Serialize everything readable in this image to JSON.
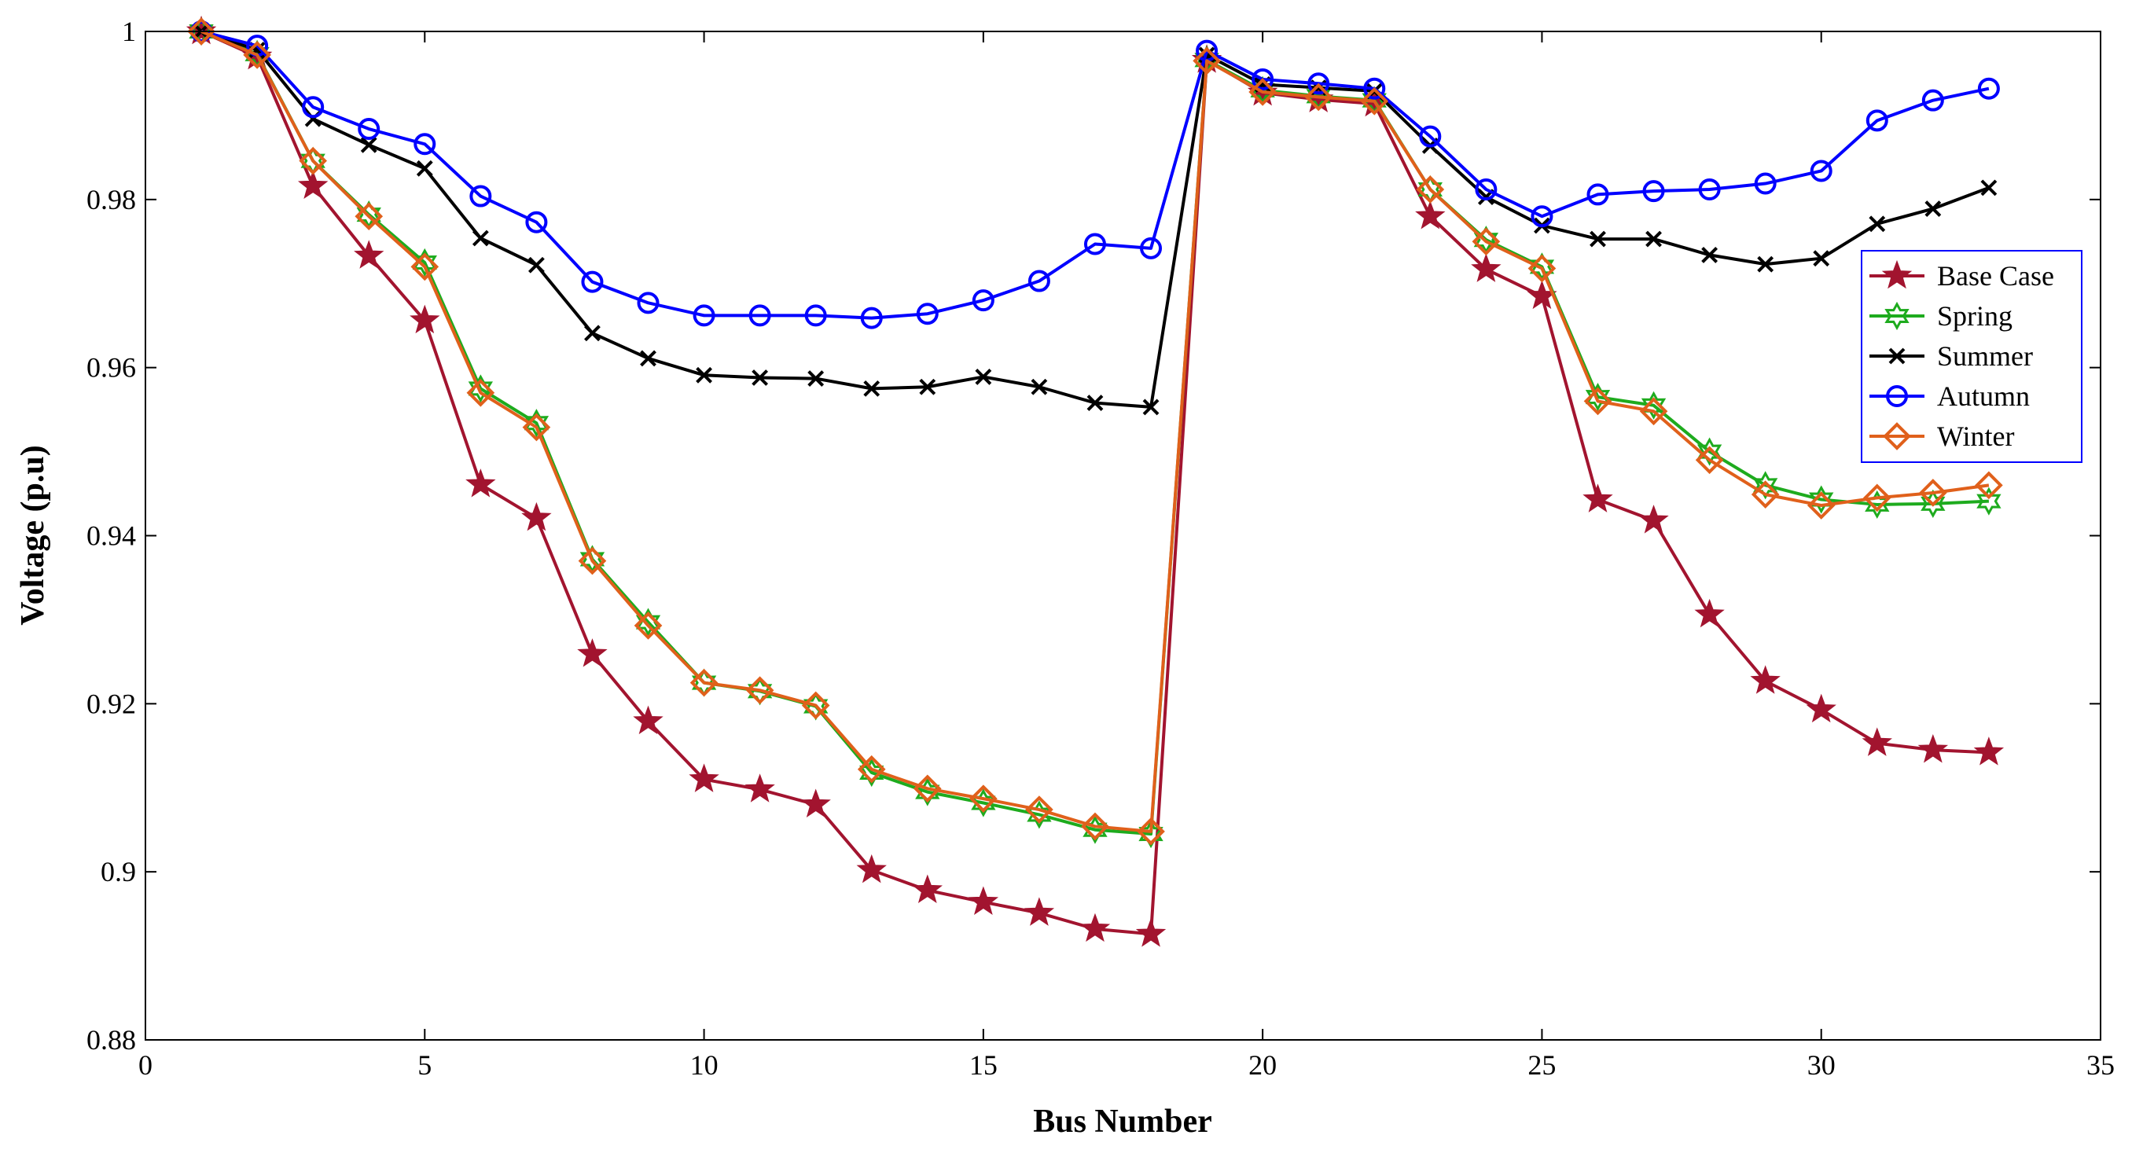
{
  "chart_data": {
    "type": "line",
    "title": "",
    "xlabel": "Bus Number",
    "ylabel": "Voltage (p.u)",
    "xlim": [
      0,
      35
    ],
    "ylim": [
      0.88,
      1.0
    ],
    "xticks": [
      0,
      5,
      10,
      15,
      20,
      25,
      30,
      35
    ],
    "yticks": [
      0.88,
      0.9,
      0.92,
      0.94,
      0.96,
      0.98,
      1.0
    ],
    "xtick_labels": [
      "0",
      "5",
      "10",
      "15",
      "20",
      "25",
      "30",
      "35"
    ],
    "ytick_labels": [
      "0.88",
      "0.9",
      "0.92",
      "0.94",
      "0.96",
      "0.98",
      "1"
    ],
    "grid": false,
    "legend_position": "right, upper-middle",
    "x": [
      1,
      2,
      3,
      4,
      5,
      6,
      7,
      8,
      9,
      10,
      11,
      12,
      13,
      14,
      15,
      16,
      17,
      18,
      19,
      20,
      21,
      22,
      23,
      24,
      25,
      26,
      27,
      28,
      29,
      30,
      31,
      32,
      33
    ],
    "series": [
      {
        "name": "Base Case",
        "color": "#A2142F",
        "marker": "star",
        "values": [
          1.0,
          0.997,
          0.9816,
          0.9733,
          0.9656,
          0.9461,
          0.9421,
          0.9259,
          0.9179,
          0.911,
          0.9098,
          0.908,
          0.9002,
          0.8978,
          0.8964,
          0.8951,
          0.8932,
          0.8926,
          0.9966,
          0.9927,
          0.9919,
          0.9914,
          0.978,
          0.9717,
          0.9685,
          0.9443,
          0.9418,
          0.9306,
          0.9227,
          0.9193,
          0.9153,
          0.9145,
          0.9142
        ]
      },
      {
        "name": "Spring",
        "color": "#1EAB1E",
        "marker": "hexagram",
        "values": [
          1.0,
          0.9973,
          0.9846,
          0.9782,
          0.9725,
          0.9575,
          0.9534,
          0.9372,
          0.9297,
          0.9225,
          0.9215,
          0.9197,
          0.9118,
          0.9095,
          0.9082,
          0.9068,
          0.905,
          0.9045,
          0.9966,
          0.993,
          0.9923,
          0.9918,
          0.9812,
          0.9752,
          0.972,
          0.9565,
          0.9555,
          0.95,
          0.946,
          0.9443,
          0.9437,
          0.9438,
          0.9441
        ]
      },
      {
        "name": "Summer",
        "color": "#000000",
        "marker": "x",
        "values": [
          1.0,
          0.9978,
          0.9896,
          0.9865,
          0.9837,
          0.9754,
          0.9722,
          0.9641,
          0.9611,
          0.9591,
          0.9588,
          0.9587,
          0.9575,
          0.9577,
          0.9589,
          0.9577,
          0.9558,
          0.9553,
          0.9972,
          0.9937,
          0.9933,
          0.9929,
          0.9864,
          0.9803,
          0.9769,
          0.9753,
          0.9753,
          0.9734,
          0.9723,
          0.973,
          0.9771,
          0.9789,
          0.9814
        ]
      },
      {
        "name": "Autumn",
        "color": "#0000FF",
        "marker": "circle",
        "values": [
          1.0,
          0.9983,
          0.991,
          0.9884,
          0.9866,
          0.9804,
          0.9773,
          0.9702,
          0.9677,
          0.9662,
          0.9662,
          0.9662,
          0.9659,
          0.9664,
          0.968,
          0.9703,
          0.9747,
          0.9742,
          0.9977,
          0.9943,
          0.9938,
          0.9932,
          0.9875,
          0.9812,
          0.978,
          0.9806,
          0.981,
          0.9812,
          0.9819,
          0.9834,
          0.9894,
          0.9918,
          0.9932
        ]
      },
      {
        "name": "Winter",
        "color": "#E0601B",
        "marker": "diamond",
        "values": [
          1.0,
          0.9972,
          0.9846,
          0.978,
          0.972,
          0.957,
          0.9529,
          0.937,
          0.9293,
          0.9225,
          0.9216,
          0.9198,
          0.9122,
          0.9099,
          0.9087,
          0.9074,
          0.9054,
          0.9048,
          0.9965,
          0.9928,
          0.9922,
          0.9917,
          0.9812,
          0.975,
          0.9718,
          0.956,
          0.9548,
          0.949,
          0.9449,
          0.9436,
          0.9445,
          0.9451,
          0.946
        ]
      }
    ]
  }
}
